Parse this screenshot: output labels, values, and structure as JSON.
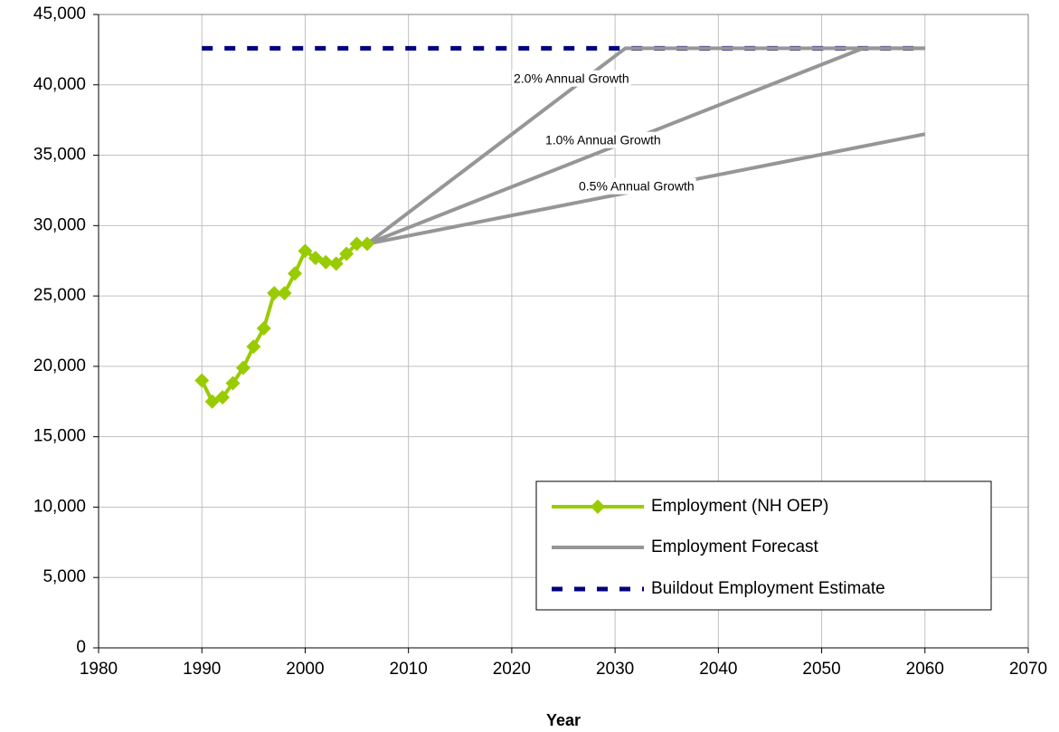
{
  "chart_data": {
    "type": "line",
    "x_label": "Year",
    "xlim": [
      1980,
      2070
    ],
    "xticks": [
      1980,
      1990,
      2000,
      2010,
      2020,
      2030,
      2040,
      2050,
      2060,
      2070
    ],
    "ylim": [
      0,
      45000
    ],
    "yticks": [
      0,
      {
        "value": 5000,
        "label": "5,000"
      },
      {
        "value": 10000,
        "label": "10,000"
      },
      {
        "value": 15000,
        "label": "15,000"
      },
      {
        "value": 20000,
        "label": "20,000"
      },
      {
        "value": 25000,
        "label": "25,000"
      },
      {
        "value": 30000,
        "label": "30,000"
      },
      {
        "value": 35000,
        "label": "35,000"
      },
      {
        "value": 40000,
        "label": "40,000"
      },
      {
        "value": 45000,
        "label": "45,000"
      }
    ],
    "grid": true,
    "series": [
      {
        "name": "Employment (NH OEP)",
        "color": "#99cc00",
        "x": [
          1990,
          1991,
          1992,
          1993,
          1994,
          1995,
          1996,
          1997,
          1998,
          1999,
          2000,
          2001,
          2002,
          2003,
          2004,
          2005,
          2006
        ],
        "values": [
          19000,
          17500,
          17800,
          18800,
          19900,
          21400,
          22700,
          25200,
          25200,
          26600,
          28200,
          27700,
          27400,
          27300,
          28000,
          28700,
          28700
        ]
      },
      {
        "name": "Employment Forecast",
        "color": "#969696",
        "lines": [
          {
            "label": "2.0% Annual Growth",
            "x": [
              2006,
              2031,
              2060
            ],
            "values": [
              28700,
              42600,
              42600
            ]
          },
          {
            "label": "1.0% Annual Growth",
            "x": [
              2006,
              2054,
              2060
            ],
            "values": [
              28700,
              42600,
              42600
            ]
          },
          {
            "label": "0.5% Annual Growth",
            "x": [
              2006,
              2060
            ],
            "values": [
              28700,
              36500
            ]
          }
        ]
      },
      {
        "name": "Buildout Employment Estimate",
        "color": "#000080",
        "x": [
          1990,
          2060
        ],
        "values": [
          42600,
          42600
        ]
      }
    ]
  }
}
